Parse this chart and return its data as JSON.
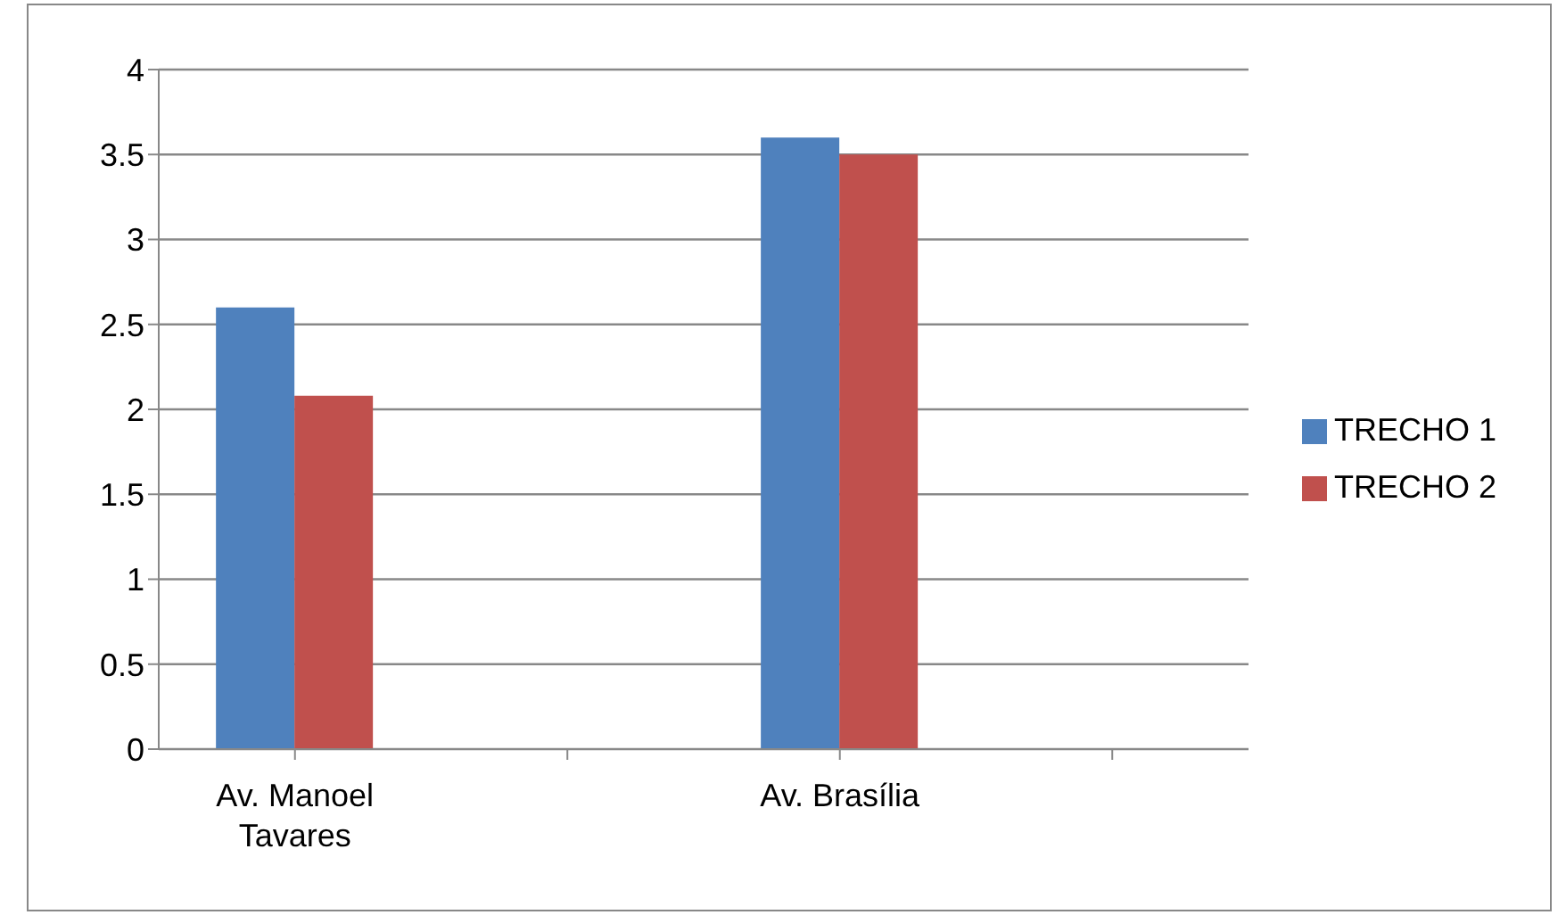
{
  "chart_data": {
    "type": "bar",
    "categories": [
      "Av. Manoel Tavares",
      null,
      "Av. Brasília",
      null
    ],
    "series": [
      {
        "name": "TRECHO 1",
        "color": "#4f81bd",
        "values": [
          2.6,
          null,
          3.6,
          null
        ]
      },
      {
        "name": "TRECHO 2",
        "color": "#c0504d",
        "values": [
          2.08,
          null,
          3.5,
          null
        ]
      }
    ],
    "ylim": [
      0,
      4
    ],
    "yticks": [
      0,
      0.5,
      1,
      1.5,
      2,
      2.5,
      3,
      3.5,
      4
    ],
    "grid": "y",
    "legend": "right"
  }
}
